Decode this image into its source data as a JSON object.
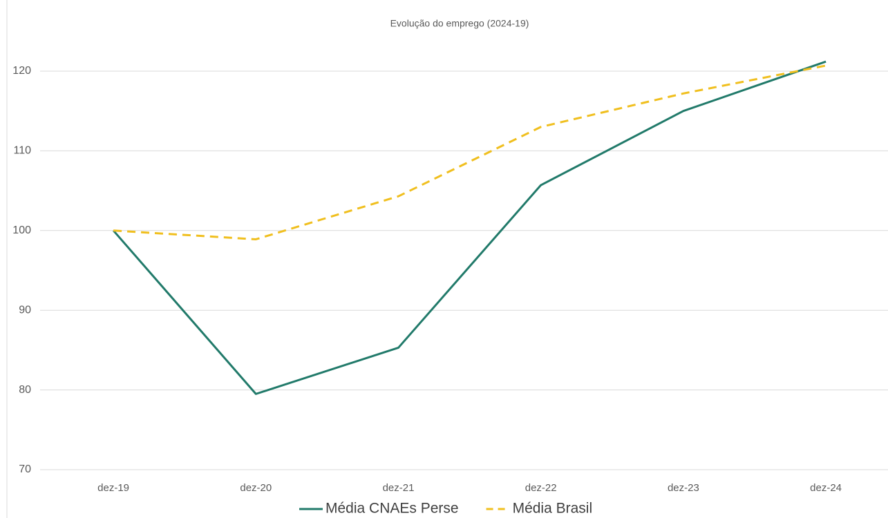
{
  "chart_data": {
    "type": "line",
    "title": "Evolução do emprego (2024-19)",
    "categories": [
      "dez-19",
      "dez-20",
      "dez-21",
      "dez-22",
      "dez-23",
      "dez-24"
    ],
    "series": [
      {
        "name": "Média CNAEs Perse",
        "color": "#217a6a",
        "dash": false,
        "values": [
          100,
          79.5,
          85.3,
          105.7,
          115,
          121.2
        ]
      },
      {
        "name": "Média Brasil",
        "color": "#f0bf1e",
        "dash": true,
        "values": [
          100,
          98.9,
          104.3,
          113,
          117.2,
          120.7
        ]
      }
    ],
    "ylim": [
      70,
      120
    ],
    "yticks": [
      70,
      80,
      90,
      100,
      110,
      120
    ],
    "grid": true,
    "legend": "bottom"
  }
}
